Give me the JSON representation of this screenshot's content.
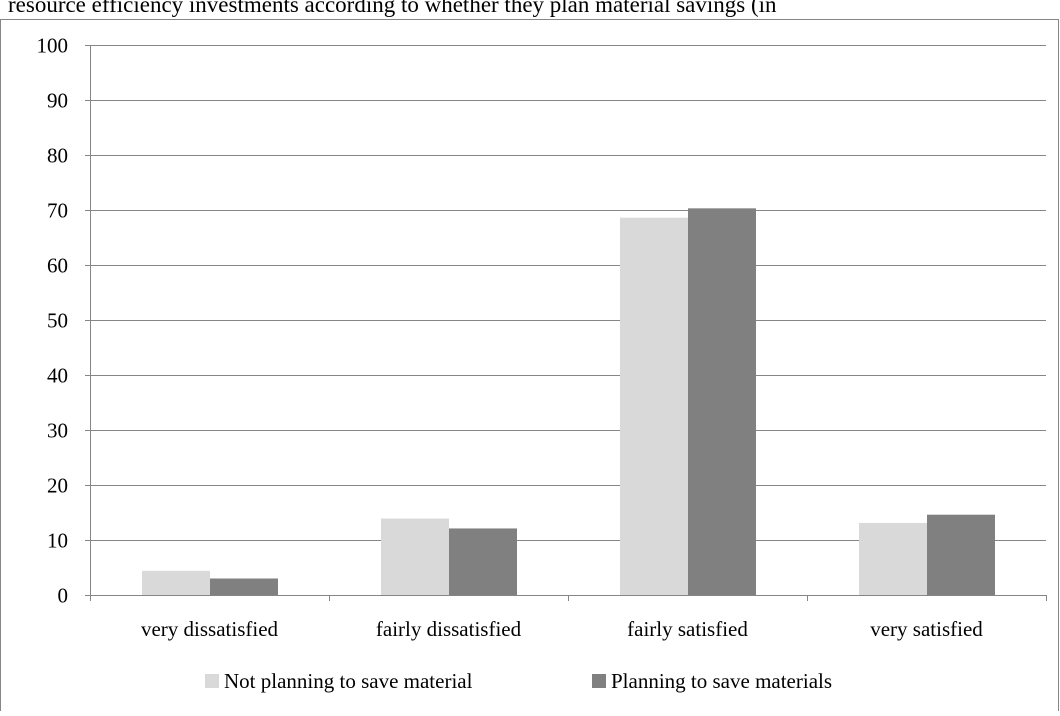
{
  "caption": "resource efficiency investments according to whether they plan material savings (in",
  "chart_data": {
    "type": "bar",
    "title": "",
    "xlabel": "",
    "ylabel": "",
    "categories": [
      "very dissatisfied",
      "fairly dissatisfied",
      "fairly satisfied",
      "very satisfied"
    ],
    "series": [
      {
        "name": "Not planning to save material",
        "values": [
          4.4,
          13.9,
          68.6,
          13.1
        ],
        "color": "#d9d9d9"
      },
      {
        "name": "Planning to save materials",
        "values": [
          3.0,
          12.1,
          70.3,
          14.6
        ],
        "color": "#808080"
      }
    ],
    "yticks": [
      "0",
      "10",
      "20",
      "30",
      "40",
      "50",
      "60",
      "70",
      "80",
      "90",
      "100"
    ],
    "ylim": [
      0,
      100
    ],
    "grid": true,
    "legend_position": "bottom"
  }
}
